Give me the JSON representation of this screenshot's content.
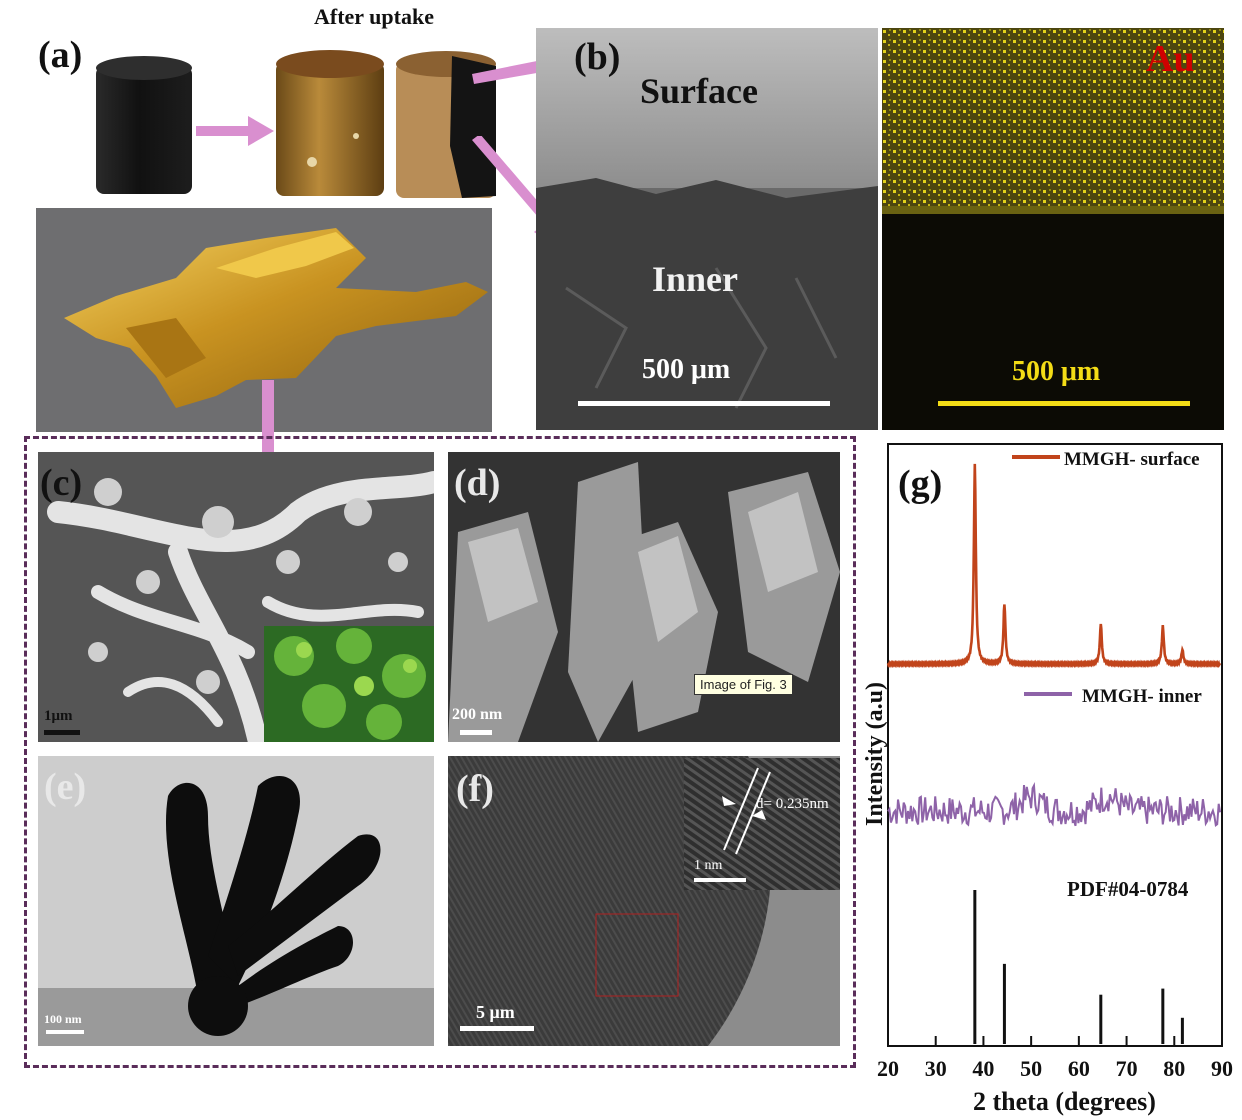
{
  "panels": {
    "a": {
      "label": "(a)",
      "caption": "After uptake"
    },
    "b": {
      "label": "(b)",
      "surface": "Surface",
      "inner": "Inner",
      "scale": "500 μm",
      "map_label": "Au",
      "map_scale": "500 μm"
    },
    "c": {
      "label": "(c)",
      "scale": "1μm"
    },
    "d": {
      "label": "(d)",
      "scale": "200 nm",
      "tooltip": "Image of Fig. 3"
    },
    "e": {
      "label": "(e)",
      "scale": "100 nm"
    },
    "f": {
      "label": "(f)",
      "scale": "5 μm",
      "inset_scale": "1 nm",
      "d_spacing": "d= 0.235nm"
    },
    "g": {
      "label": "(g)"
    }
  },
  "colors": {
    "arrow": "#d98fcf",
    "surface_series": "#c1441b",
    "inner_series": "#8e63a8",
    "au_map": "#e3d21b",
    "frame": "#5a2d5a"
  },
  "chart_data": {
    "type": "line",
    "xlabel": "2 theta (degrees)",
    "ylabel": "Intensity (a.u)",
    "xlim": [
      20,
      90
    ],
    "xticks": [
      20,
      30,
      40,
      50,
      60,
      70,
      80,
      90
    ],
    "series": [
      {
        "name": "MMGH- surface",
        "peaks": [
          [
            38.2,
            100
          ],
          [
            44.4,
            30
          ],
          [
            64.6,
            20
          ],
          [
            77.6,
            19
          ],
          [
            81.7,
            7
          ]
        ]
      },
      {
        "name": "MMGH- inner",
        "profile": "noisy amorphous",
        "humps": [
          50,
          66
        ]
      },
      {
        "name": "PDF#04-0784",
        "sticks": [
          [
            38.2,
            100
          ],
          [
            44.4,
            52
          ],
          [
            64.6,
            32
          ],
          [
            77.6,
            36
          ],
          [
            81.7,
            17
          ]
        ]
      }
    ]
  }
}
